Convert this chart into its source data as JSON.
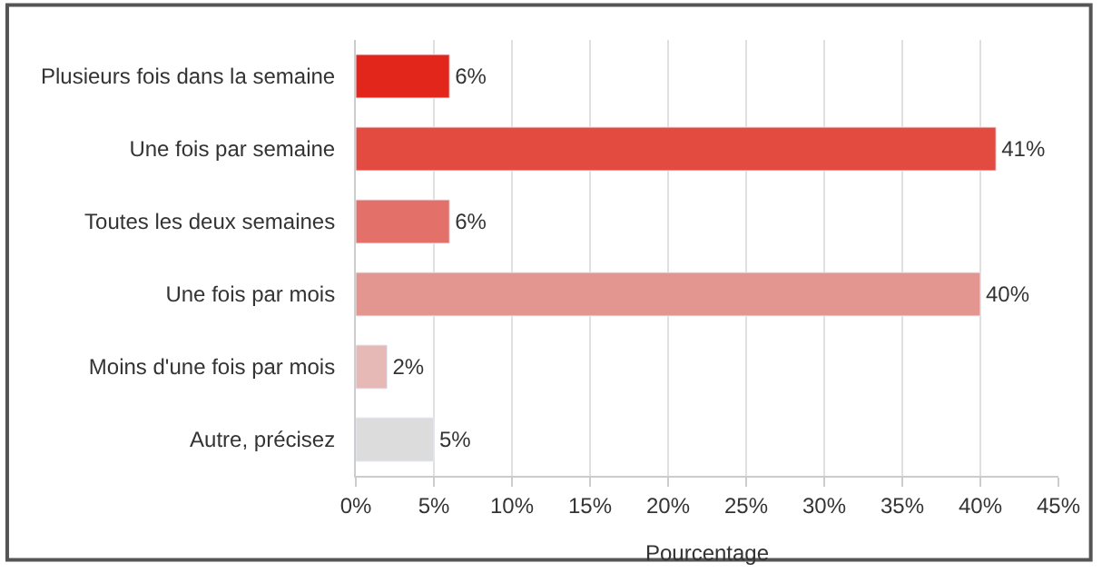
{
  "chart_data": {
    "type": "bar",
    "orientation": "horizontal",
    "xlabel": "Pourcentage",
    "categories": [
      "Plusieurs fois dans la semaine",
      "Une fois par semaine",
      "Toutes les deux semaines",
      "Une fois par mois",
      "Moins d'une fois par mois",
      "Autre, précisez"
    ],
    "values": [
      6,
      41,
      6,
      40,
      2,
      5
    ],
    "value_labels": [
      "6%",
      "41%",
      "6%",
      "40%",
      "2%",
      "5%"
    ],
    "colors": [
      "#e3261b",
      "#e34a40",
      "#e4706a",
      "#e3968f",
      "#e6b9b7",
      "#dcdcdc"
    ],
    "xlim": [
      0,
      45
    ],
    "xticks": [
      {
        "value": 0,
        "label": "0%"
      },
      {
        "value": 5,
        "label": "5%"
      },
      {
        "value": 10,
        "label": "10%"
      },
      {
        "value": 15,
        "label": "15%"
      },
      {
        "value": 20,
        "label": "20%"
      },
      {
        "value": 25,
        "label": "25%"
      },
      {
        "value": 30,
        "label": "30%"
      },
      {
        "value": 35,
        "label": "35%"
      },
      {
        "value": 40,
        "label": "40%"
      },
      {
        "value": 45,
        "label": "45%"
      }
    ],
    "grid": "x"
  }
}
